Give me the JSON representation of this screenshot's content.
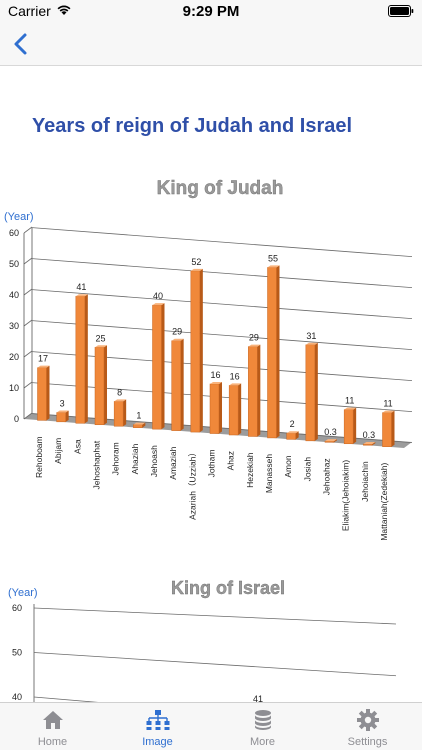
{
  "status_bar": {
    "carrier": "Carrier",
    "time": "9:29 PM"
  },
  "page": {
    "title": "Years of reign of Judah and Israel"
  },
  "colors": {
    "title_blue": "#2f4fa8",
    "bar_orange": "#f0883a",
    "axis_blue": "#2f6fd0",
    "tab_active": "#2f6fd0",
    "tab_inactive": "#8e8e93"
  },
  "chart_data": [
    {
      "type": "bar",
      "title": "King of Judah",
      "ylabel": "(Year)",
      "ylim": [
        0,
        60
      ],
      "yticks": [
        0,
        10,
        20,
        30,
        40,
        50,
        60
      ],
      "grid": true,
      "categories": [
        "Rehoboam",
        "Abijam",
        "Asa",
        "Jehoshaphat",
        "Jehoram",
        "Ahaziah",
        "Jehoash",
        "Amaziah",
        "Azariah（Uzziah）",
        "Jotham",
        "Ahaz",
        "Hezekiah",
        "Manasseh",
        "Amon",
        "Josiah",
        "Jehoahaz",
        "Eliakim(Jehoiakim)",
        "Jehoiachin",
        "Mattaniah(Zedekiah)"
      ],
      "values": [
        17,
        3,
        41,
        25,
        8,
        1,
        40,
        29,
        52,
        16,
        16,
        29,
        55,
        2,
        31,
        0.3,
        11,
        0.3,
        11
      ]
    },
    {
      "type": "bar",
      "title": "King of Israel",
      "ylabel": "(Year)",
      "ylim": [
        40,
        60
      ],
      "yticks": [
        40,
        50,
        60
      ],
      "grid": true,
      "visible_label": "41"
    }
  ],
  "tabs": [
    {
      "label": "Home",
      "icon": "home-icon"
    },
    {
      "label": "Image",
      "icon": "hierarchy-icon"
    },
    {
      "label": "More",
      "icon": "database-icon"
    },
    {
      "label": "Settings",
      "icon": "gear-icon"
    }
  ]
}
